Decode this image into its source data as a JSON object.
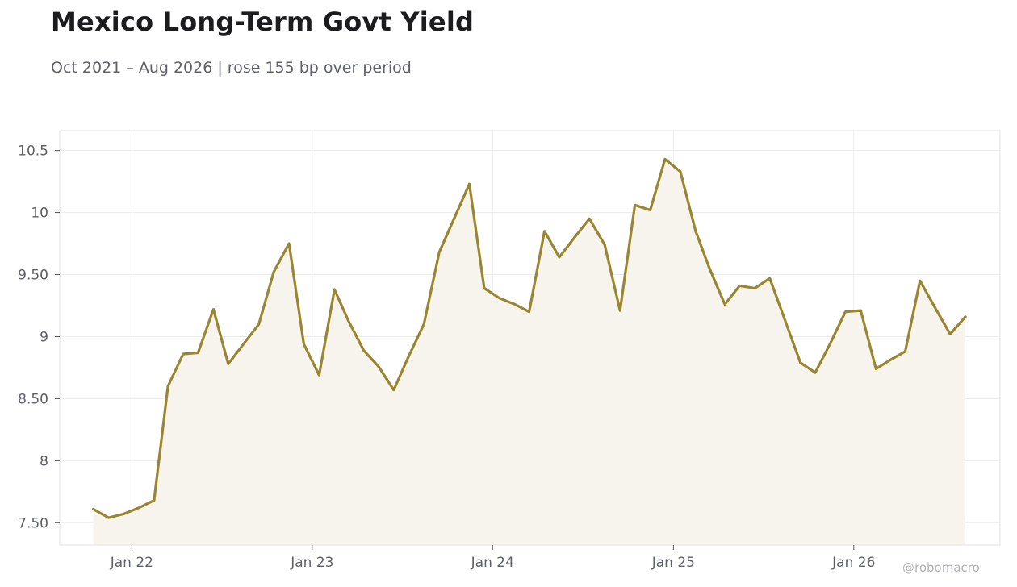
{
  "header": {
    "title": "Mexico Long-Term Govt Yield",
    "subtitle": "Oct 2021 – Aug 2026 | rose 155 bp over period"
  },
  "footer": {
    "credit": "@robomacro"
  },
  "chart_data": {
    "type": "area",
    "title": "Mexico Long-Term Govt Yield",
    "subtitle": "Oct 2021 – Aug 2026 | rose 155 bp over period",
    "xlabel": "",
    "ylabel": "",
    "x_ticks": [
      {
        "date": "2022-01-01",
        "label": "Jan 22"
      },
      {
        "date": "2023-01-01",
        "label": "Jan 23"
      },
      {
        "date": "2024-01-01",
        "label": "Jan 24"
      },
      {
        "date": "2025-01-01",
        "label": "Jan 25"
      },
      {
        "date": "2026-01-01",
        "label": "Jan 26"
      }
    ],
    "y_ticks": [
      {
        "value": 7.5,
        "label": "7.50"
      },
      {
        "value": 8,
        "label": "8"
      },
      {
        "value": 8.5,
        "label": "8.50"
      },
      {
        "value": 9,
        "label": "9"
      },
      {
        "value": 9.5,
        "label": "9.50"
      },
      {
        "value": 10,
        "label": "10"
      },
      {
        "value": 10.5,
        "label": "10.5"
      }
    ],
    "xlim": [
      "2021-08-08",
      "2026-10-24"
    ],
    "ylim": [
      7.32,
      10.66
    ],
    "grid": true,
    "colors": {
      "line": "#9a8530",
      "fill": "#f7f4ee",
      "grid": "#ececec",
      "frame": "#e3e3e3"
    },
    "series": [
      {
        "x": [
          "2021-10",
          "2021-11",
          "2021-12",
          "2022-01",
          "2022-02",
          "2022-03",
          "2022-04",
          "2022-05",
          "2022-06",
          "2022-07",
          "2022-08",
          "2022-09",
          "2022-10",
          "2022-11",
          "2022-12",
          "2023-01",
          "2023-02",
          "2023-03",
          "2023-04",
          "2023-05",
          "2023-06",
          "2023-07",
          "2023-08",
          "2023-09",
          "2023-10",
          "2023-11",
          "2023-12",
          "2024-01",
          "2024-02",
          "2024-03",
          "2024-04",
          "2024-05",
          "2024-06",
          "2024-07",
          "2024-08",
          "2024-09",
          "2024-10",
          "2024-11",
          "2024-12",
          "2025-01",
          "2025-02",
          "2025-03",
          "2025-04",
          "2025-05",
          "2025-06",
          "2025-07",
          "2025-08",
          "2025-09",
          "2025-10",
          "2025-11",
          "2025-12",
          "2026-01",
          "2026-02",
          "2026-03",
          "2026-04",
          "2026-05",
          "2026-06",
          "2026-07",
          "2026-08"
        ],
        "values": [
          7.61,
          7.54,
          7.57,
          7.62,
          7.68,
          8.6,
          8.86,
          8.87,
          9.22,
          8.78,
          8.94,
          9.1,
          9.52,
          9.75,
          8.94,
          8.69,
          9.38,
          9.13,
          8.89,
          8.76,
          8.57,
          8.84,
          9.1,
          9.68,
          9.95,
          10.23,
          9.39,
          9.31,
          9.26,
          9.2,
          9.85,
          9.64,
          9.8,
          9.95,
          9.74,
          9.21,
          10.06,
          10.02,
          10.43,
          10.33,
          9.85,
          9.55,
          9.26,
          9.41,
          9.39,
          9.47,
          9.13,
          8.79,
          8.71,
          8.95,
          9.2,
          9.21,
          8.74,
          8.81,
          8.88,
          9.45,
          9.23,
          9.02,
          9.16
        ]
      }
    ]
  }
}
